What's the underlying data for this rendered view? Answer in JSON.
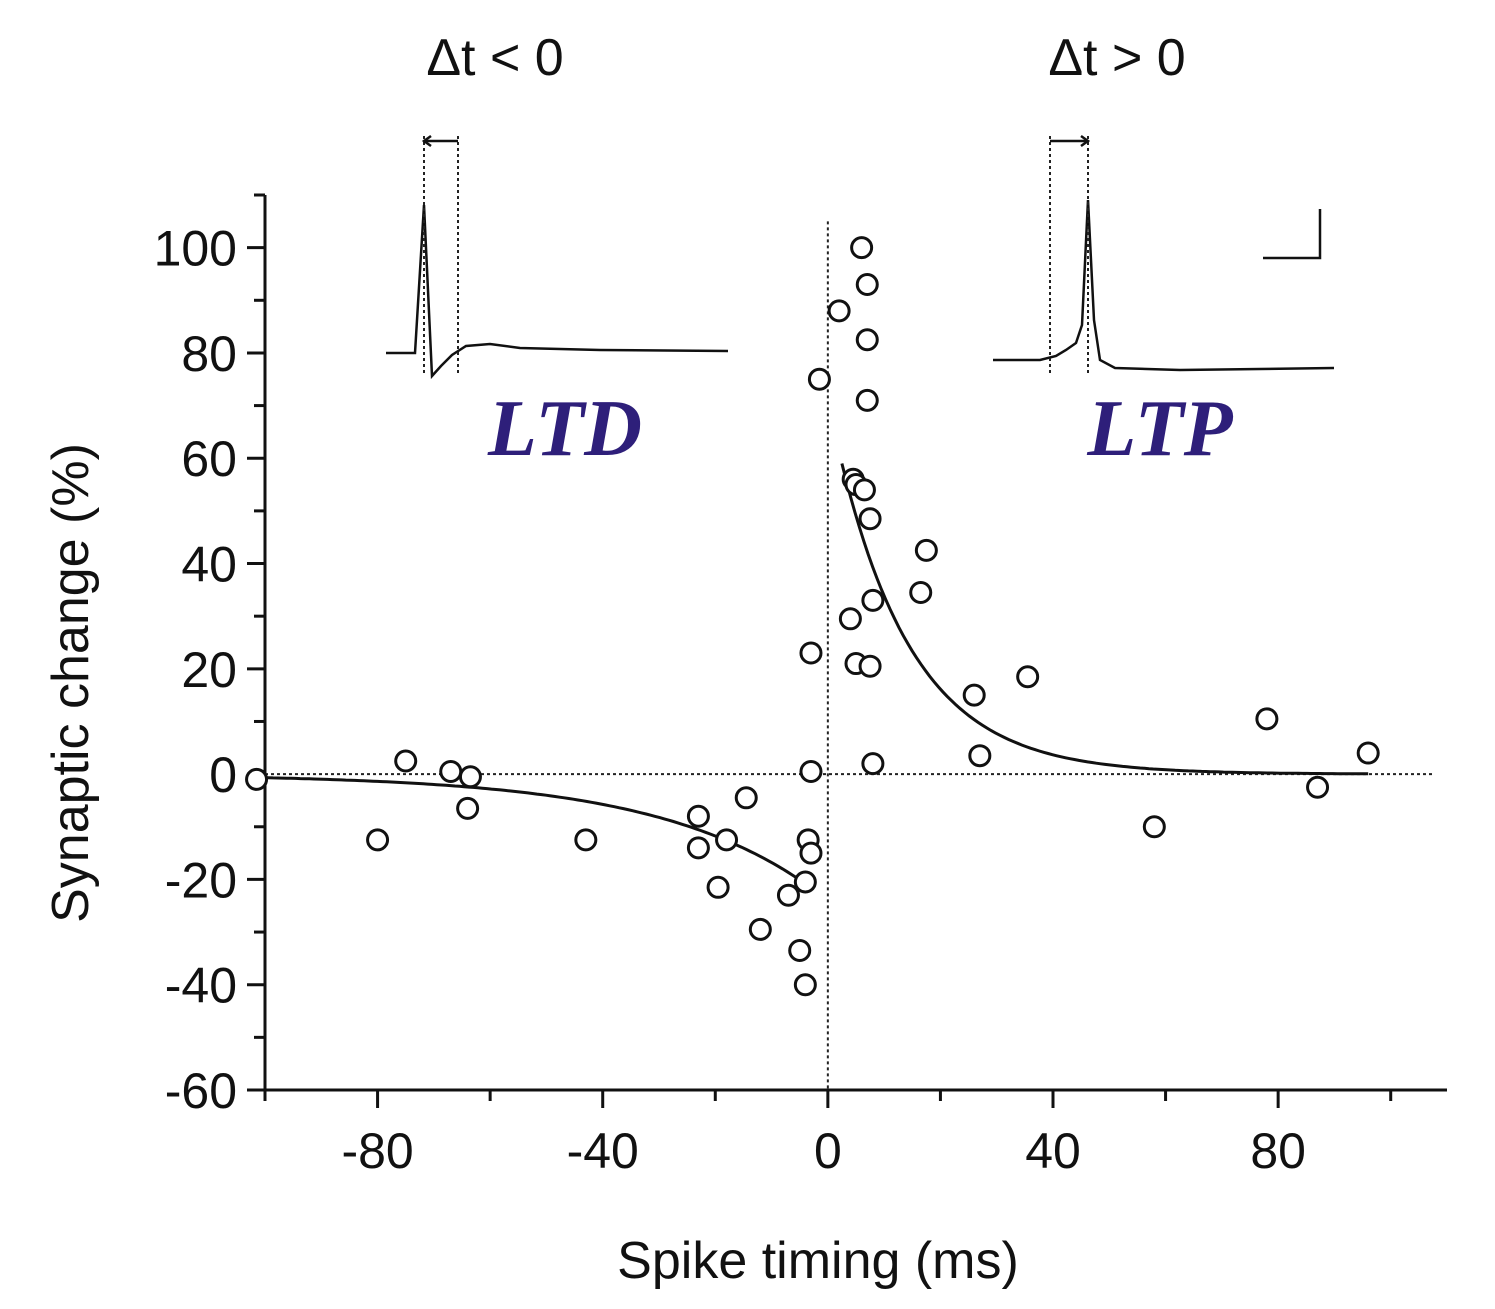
{
  "colors": {
    "accent_label": "#2e1f7a",
    "ink": "#111111"
  },
  "chart_data": {
    "type": "scatter",
    "title": "",
    "xlabel": "Spike timing (ms)",
    "ylabel": "Synaptic change (%)",
    "xlim": [
      -100,
      110
    ],
    "ylim": [
      -60,
      110
    ],
    "xticks": [
      -80,
      -40,
      0,
      40,
      80
    ],
    "xtick_labels": [
      "-80",
      "-40",
      "0",
      "40",
      "80"
    ],
    "yticks": [
      -60,
      -40,
      -20,
      0,
      20,
      40,
      60,
      80,
      100
    ],
    "ytick_labels": [
      "-60",
      "-40",
      "-20",
      "0",
      "20",
      "40",
      "60",
      "80",
      "100"
    ],
    "annotations": {
      "left_condition": "Δt < 0",
      "right_condition": "Δt > 0",
      "left_region": "LTD",
      "right_region": "LTP"
    },
    "series": [
      {
        "name": "LTD",
        "x": [
          -101.5,
          -80,
          -75,
          -67,
          -63.5,
          -64,
          -43,
          -23,
          -23,
          -18,
          -19.5,
          -14.5,
          -12,
          -7,
          -5,
          -4,
          -3.5,
          -4,
          -3,
          -3,
          -3,
          -1.5
        ],
        "y": [
          -1,
          -12.5,
          2.5,
          0.5,
          -0.5,
          -6.5,
          -12.5,
          -8,
          -14,
          -12.5,
          -21.5,
          -4.5,
          -29.5,
          -23,
          -33.5,
          -20.5,
          -12.5,
          -40,
          -15,
          0.5,
          23,
          75
        ]
      },
      {
        "name": "LTP",
        "x": [
          2,
          6,
          7,
          7,
          7,
          4.5,
          5,
          6.5,
          7.5,
          4,
          8,
          5,
          7.5,
          8,
          17.5,
          16.5,
          26,
          27,
          35.5,
          58,
          78,
          87,
          96
        ],
        "y": [
          88,
          100,
          93,
          82.5,
          71,
          56,
          55,
          54,
          48.5,
          29.5,
          33,
          21,
          20.5,
          2,
          42.5,
          34.5,
          15,
          3.5,
          18.5,
          -10,
          10.5,
          -2.5,
          4
        ]
      }
    ],
    "fits": [
      {
        "name": "LTD fit",
        "type": "exponential",
        "amplitude": -24,
        "tau_ms": 28,
        "x_range": [
          -101,
          -4
        ]
      },
      {
        "name": "LTP fit",
        "type": "exponential",
        "amplitude": 71,
        "tau_ms": 13.5,
        "x_range": [
          2.5,
          96
        ]
      }
    ]
  }
}
